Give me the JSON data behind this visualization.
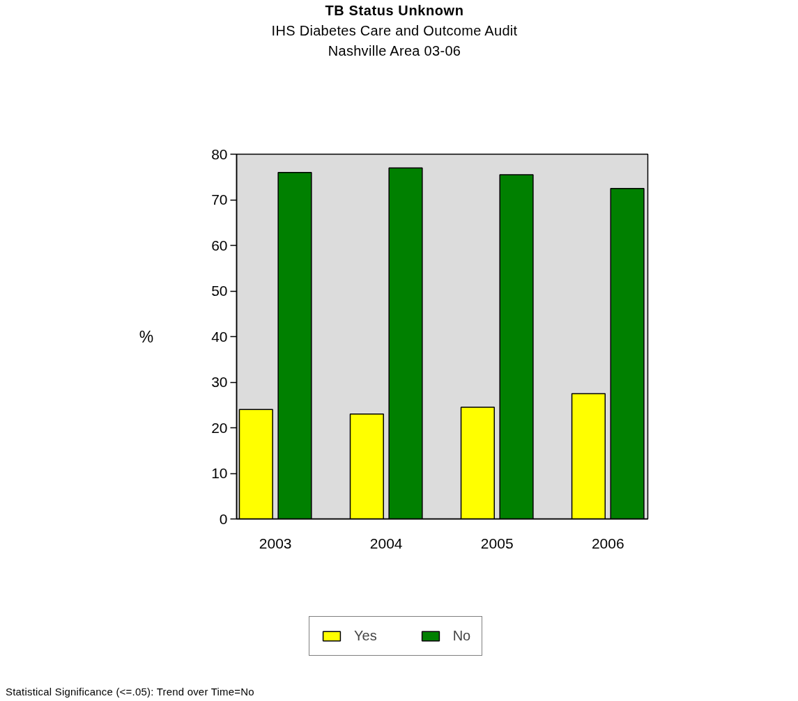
{
  "chart_data": {
    "type": "bar",
    "title": "TB Status Unknown",
    "subtitle": "IHS Diabetes Care and Outcome Audit\nNashville Area 03-06",
    "ylabel": "%",
    "categories": [
      "2003",
      "2004",
      "2005",
      "2006"
    ],
    "series": [
      {
        "name": "Yes",
        "color": "#ffff00",
        "values": [
          24,
          23,
          24.5,
          27.5
        ]
      },
      {
        "name": "No",
        "color": "#008000",
        "values": [
          76,
          77,
          75.5,
          72.5
        ]
      }
    ],
    "ylim": [
      0,
      80
    ],
    "yticks": [
      0,
      10,
      20,
      30,
      40,
      50,
      60,
      70,
      80
    ],
    "grid": false,
    "legend": "bottom",
    "annotations": [
      "Statistical Significance (<=.05): Trend over Time=No"
    ]
  }
}
